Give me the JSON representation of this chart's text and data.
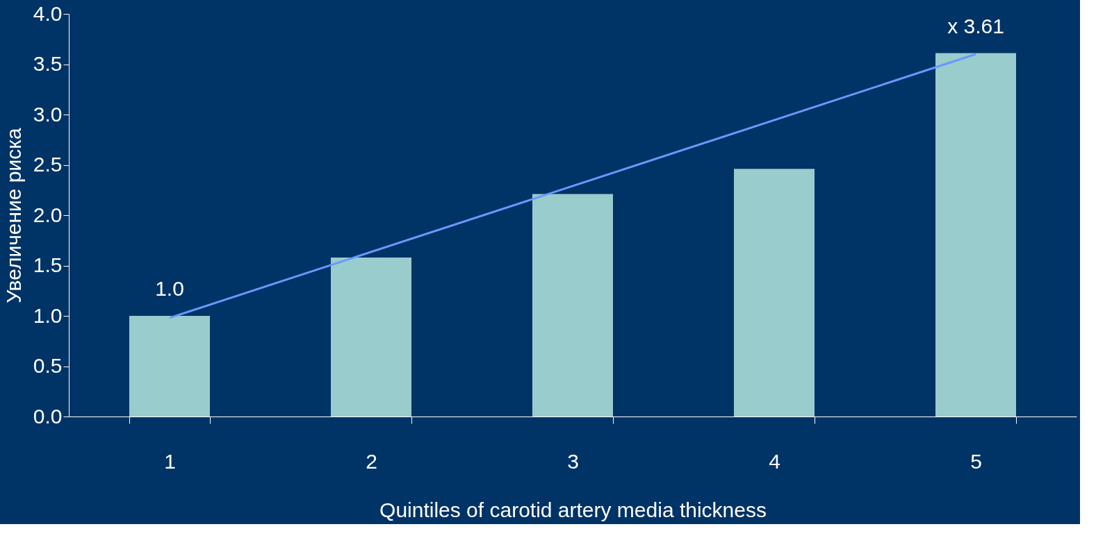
{
  "chart_data": {
    "type": "bar",
    "xlabel": "Quintiles of carotid artery media thickness",
    "ylabel": "Увеличение риска",
    "categories": [
      "1",
      "2",
      "3",
      "4",
      "5"
    ],
    "series": [
      {
        "color": "#99cccc",
        "values": [
          1.0,
          1.58,
          2.21,
          2.46,
          3.61
        ]
      },
      {
        "type": "line",
        "color": "#6699ff",
        "x": [
          "1",
          "5"
        ],
        "values": [
          0.98,
          3.6
        ]
      }
    ],
    "annotations": [
      {
        "text": "1.0",
        "x": "1",
        "y": 1.0
      },
      {
        "text": "x 3.61",
        "x": "5",
        "y": 3.61
      }
    ],
    "ylim": [
      0,
      4
    ],
    "yticks": [
      {
        "value": 0,
        "label": "0.0"
      },
      {
        "value": 0.5,
        "label": "0.5"
      },
      {
        "value": 1,
        "label": "1.0"
      },
      {
        "value": 1.5,
        "label": "1.5"
      },
      {
        "value": 2,
        "label": "2.0"
      },
      {
        "value": 2.5,
        "label": "2.5"
      },
      {
        "value": 3,
        "label": "3.0"
      },
      {
        "value": 3.5,
        "label": "3.5"
      },
      {
        "value": 4,
        "label": "4.0"
      }
    ],
    "grid": false,
    "legend": false
  }
}
